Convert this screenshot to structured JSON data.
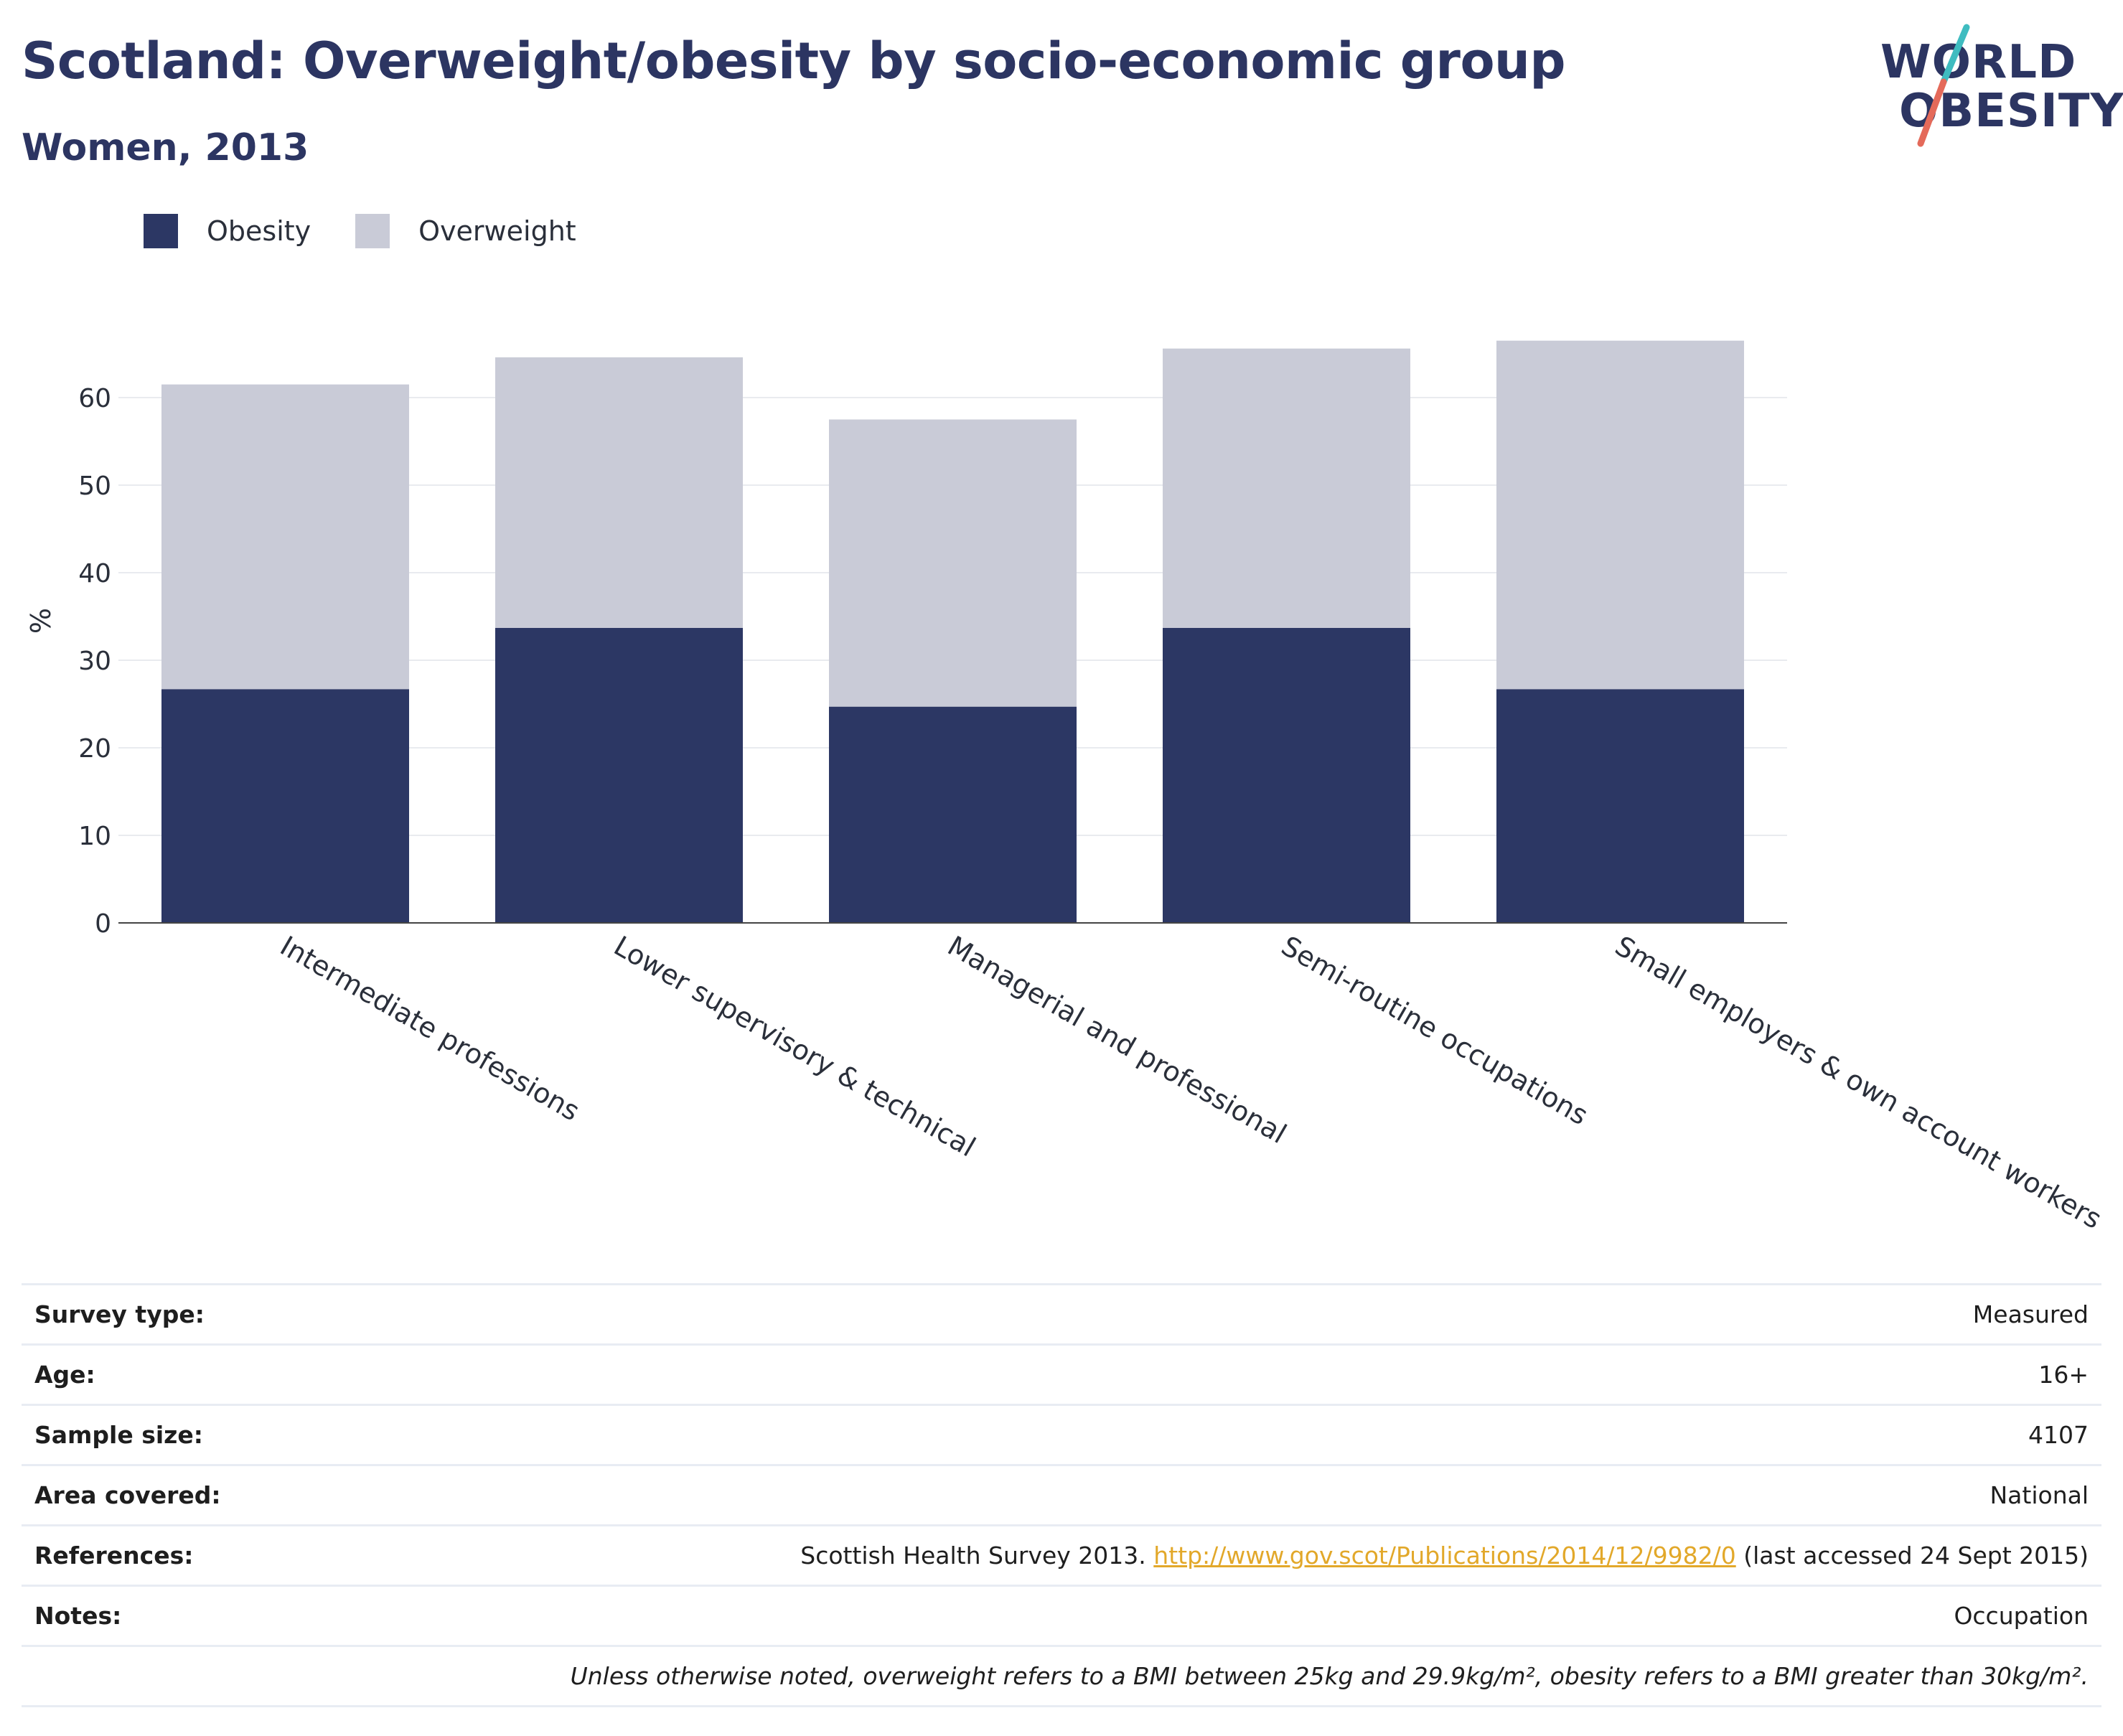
{
  "title": "Scotland: Overweight/obesity by socio-economic group",
  "subtitle": "Women, 2013",
  "logo": {
    "line1": "WORLD",
    "line2": "OBESITY"
  },
  "colors": {
    "obesity": "#2c3764",
    "overweight": "#c9cbd7",
    "title": "#2c3562",
    "link": "#e2a82a",
    "logo_teal": "#3fbcc0",
    "logo_coral": "#e46a5a"
  },
  "chart_data": {
    "type": "bar",
    "stacked": true,
    "categories": [
      "Intermediate professions",
      "Lower supervisory & technical",
      "Managerial and professional",
      "Semi-routine occupations",
      "Small employers & own account workers"
    ],
    "series": [
      {
        "name": "Obesity",
        "values": [
          26.7,
          33.7,
          24.7,
          33.7,
          26.7
        ]
      },
      {
        "name": "Overweight",
        "values": [
          34.8,
          30.9,
          32.8,
          31.9,
          39.8
        ]
      }
    ],
    "ylabel": "%",
    "ylim": [
      0,
      68
    ],
    "yticks": [
      0,
      10,
      20,
      30,
      40,
      50,
      60
    ],
    "grid": true,
    "legend": "top-left"
  },
  "info": [
    {
      "key": "Survey type:",
      "value": "Measured"
    },
    {
      "key": "Age:",
      "value": "16+"
    },
    {
      "key": "Sample size:",
      "value": "4107"
    },
    {
      "key": "Area covered:",
      "value": "National"
    },
    {
      "key": "References:",
      "value_pre": "Scottish Health Survey 2013.",
      "link": "http://www.gov.scot/Publications/2014/12/9982/0",
      "value_post": "(last accessed 24 Sept 2015)"
    },
    {
      "key": "Notes:",
      "value": "Occupation"
    }
  ],
  "footnote": "Unless otherwise noted, overweight refers to a BMI between 25kg and 29.9kg/m², obesity refers to a BMI greater than 30kg/m²."
}
